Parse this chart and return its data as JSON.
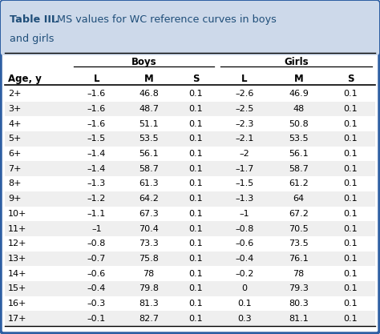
{
  "title_bold": "Table III.",
  "title_rest": "  LMS values for WC reference curves in boys\nand girls",
  "header_bg": "#cdd9ea",
  "border_color": "#2e5fa3",
  "bg_color": "#ffffff",
  "outer_bg": "#e8e8e8",
  "ages": [
    "2+",
    "3+",
    "4+",
    "5+",
    "6+",
    "7+",
    "8+",
    "9+",
    "10+",
    "11+",
    "12+",
    "13+",
    "14+",
    "15+",
    "16+",
    "17+"
  ],
  "boys_L": [
    "–1.6",
    "–1.6",
    "–1.6",
    "–1.5",
    "–1.4",
    "–1.4",
    "–1.3",
    "–1.2",
    "–1.1",
    "–1",
    "–0.8",
    "–0.7",
    "–0.6",
    "–0.4",
    "–0.3",
    "–0.1"
  ],
  "boys_M": [
    "46.8",
    "48.7",
    "51.1",
    "53.5",
    "56.1",
    "58.7",
    "61.3",
    "64.2",
    "67.3",
    "70.4",
    "73.3",
    "75.8",
    "78",
    "79.8",
    "81.3",
    "82.7"
  ],
  "boys_S": [
    "0.1",
    "0.1",
    "0.1",
    "0.1",
    "0.1",
    "0.1",
    "0.1",
    "0.1",
    "0.1",
    "0.1",
    "0.1",
    "0.1",
    "0.1",
    "0.1",
    "0.1",
    "0.1"
  ],
  "girls_L": [
    "–2.6",
    "–2.5",
    "–2.3",
    "–2.1",
    "–2",
    "–1.7",
    "–1.5",
    "–1.3",
    "–1",
    "–0.8",
    "–0.6",
    "–0.4",
    "–0.2",
    "0",
    "0.1",
    "0.3"
  ],
  "girls_M": [
    "46.9",
    "48",
    "50.8",
    "53.5",
    "56.1",
    "58.7",
    "61.2",
    "64",
    "67.2",
    "70.5",
    "73.5",
    "76.1",
    "78",
    "79.3",
    "80.3",
    "81.1"
  ],
  "girls_S": [
    "0.1",
    "0.1",
    "0.1",
    "0.1",
    "0.1",
    "0.1",
    "0.1",
    "0.1",
    "0.1",
    "0.1",
    "0.1",
    "0.1",
    "0.1",
    "0.1",
    "0.1",
    "0.1"
  ],
  "title_color": "#1f4e79",
  "text_color": "#000000",
  "font_size_title": 9.2,
  "font_size_header": 8.5,
  "font_size_data": 8.0
}
